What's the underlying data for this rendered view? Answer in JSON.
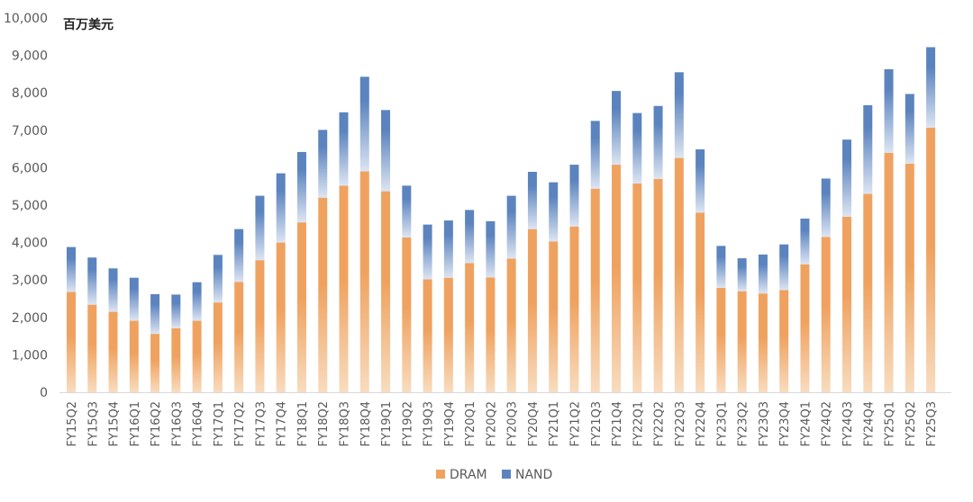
{
  "chart_data": {
    "type": "bar",
    "stacked": true,
    "unit_label": "百万美元",
    "xlabel": "",
    "ylabel": "",
    "ylim": [
      0,
      10000
    ],
    "yticks": [
      0,
      1000,
      2000,
      3000,
      4000,
      5000,
      6000,
      7000,
      8000,
      9000,
      10000
    ],
    "ytick_labels": [
      "0",
      "1,000",
      "2,000",
      "3,000",
      "4,000",
      "5,000",
      "6,000",
      "7,000",
      "8,000",
      "9,000",
      "10,000"
    ],
    "grid": false,
    "legend_position": "bottom-center",
    "categories": [
      "FY15Q2",
      "FY15Q3",
      "FY15Q4",
      "FY16Q1",
      "FY16Q2",
      "FY16Q3",
      "FY16Q4",
      "FY17Q1",
      "FY17Q2",
      "FY17Q3",
      "FY17Q4",
      "FY18Q1",
      "FY18Q2",
      "FY18Q3",
      "FY18Q4",
      "FY19Q1",
      "FY19Q2",
      "FY19Q3",
      "FY19Q4",
      "FY20Q1",
      "FY20Q2",
      "FY20Q3",
      "FY20Q4",
      "FY21Q1",
      "FY21Q2",
      "FY21Q3",
      "FY21Q4",
      "FY22Q1",
      "FY22Q2",
      "FY22Q3",
      "FY22Q4",
      "FY23Q1",
      "FY23Q2",
      "FY23Q3",
      "FY23Q4",
      "FY24Q1",
      "FY24Q2",
      "FY24Q3",
      "FY24Q4",
      "FY25Q1",
      "FY25Q2",
      "FY25Q3"
    ],
    "series": [
      {
        "name": "DRAM",
        "color": "#EFA25F",
        "color_light": "#F8DCBF",
        "values": [
          2680,
          2340,
          2150,
          1910,
          1560,
          1710,
          1910,
          2400,
          2950,
          3530,
          4000,
          4540,
          5200,
          5520,
          5900,
          5370,
          4140,
          3020,
          3060,
          3450,
          3070,
          3570,
          4360,
          4030,
          4430,
          5440,
          6080,
          5580,
          5700,
          6260,
          4800,
          2790,
          2700,
          2640,
          2730,
          3420,
          4150,
          4690,
          5300,
          6400,
          6110,
          7070
        ]
      },
      {
        "name": "NAND",
        "color": "#5B83BE",
        "color_light": "#DDE5F2",
        "values": [
          1200,
          1260,
          1160,
          1150,
          1060,
          900,
          1030,
          1270,
          1410,
          1720,
          1850,
          1880,
          1810,
          1960,
          2530,
          2170,
          1380,
          1460,
          1530,
          1420,
          1500,
          1680,
          1530,
          1580,
          1650,
          1810,
          1970,
          1880,
          1950,
          2290,
          1690,
          1120,
          880,
          1040,
          1220,
          1220,
          1560,
          2060,
          2370,
          2230,
          1860,
          2150
        ]
      }
    ]
  }
}
